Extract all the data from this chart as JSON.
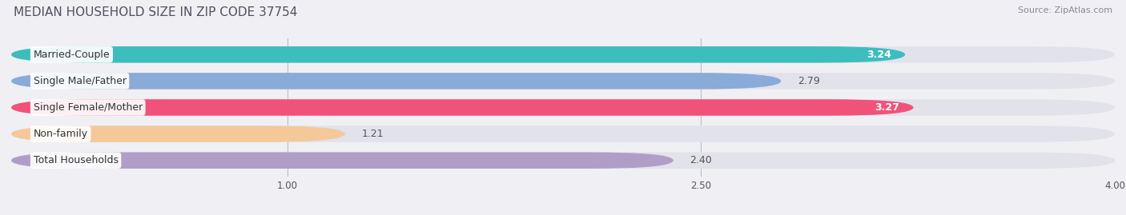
{
  "title": "MEDIAN HOUSEHOLD SIZE IN ZIP CODE 37754",
  "source": "Source: ZipAtlas.com",
  "categories": [
    "Married-Couple",
    "Single Male/Father",
    "Single Female/Mother",
    "Non-family",
    "Total Households"
  ],
  "values": [
    3.24,
    2.79,
    3.27,
    1.21,
    2.4
  ],
  "bar_colors": [
    "#3dbdbd",
    "#8aaad8",
    "#f0527a",
    "#f5c89a",
    "#b09ec8"
  ],
  "value_inside": [
    true,
    false,
    true,
    false,
    false
  ],
  "value_colors_inside": [
    "#ffffff",
    "#555555",
    "#ffffff",
    "#555555",
    "#555555"
  ],
  "xlim_min": 0.0,
  "xlim_max": 4.0,
  "xticks": [
    1.0,
    2.5,
    4.0
  ],
  "background_color": "#f0f0f4",
  "bar_background": "#e2e2ea",
  "title_fontsize": 11,
  "source_fontsize": 8,
  "label_fontsize": 9,
  "value_fontsize": 9,
  "bar_height": 0.62
}
